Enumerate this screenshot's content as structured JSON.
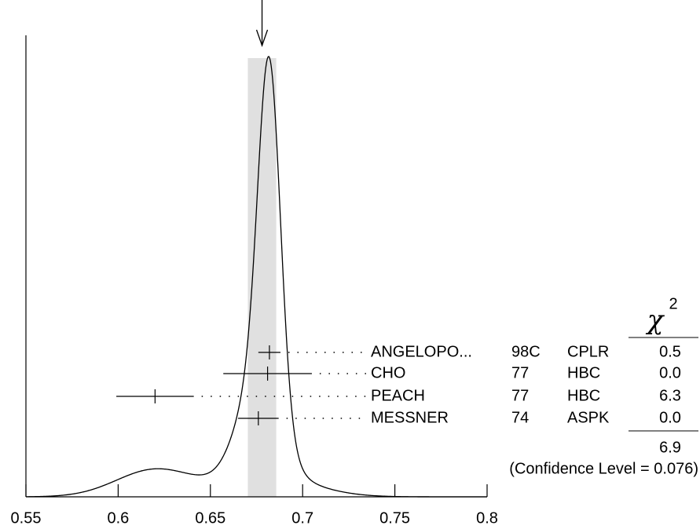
{
  "chart_data": {
    "type": "ideogram",
    "xlim": [
      0.55,
      0.8
    ],
    "xticks": [
      0.55,
      0.6,
      0.65,
      0.7,
      0.75,
      0.8
    ],
    "average": 0.678,
    "average_error": 0.0077,
    "band_color": "#e0e0e0",
    "measurements": {
      "names": [
        "ANGELOPO...",
        "CHO",
        "PEACH",
        "MESSNER"
      ],
      "years": [
        "98C",
        "77",
        "77",
        "74"
      ],
      "techniques": [
        "CPLR",
        "HBC",
        "HBC",
        "ASPK"
      ],
      "values": [
        0.682,
        0.681,
        0.62,
        0.676
      ],
      "errors": [
        0.006,
        0.024,
        0.021,
        0.011
      ]
    },
    "chi2": {
      "symbol": "χ",
      "superscript": "2",
      "values": [
        0.5,
        0,
        6.3,
        0
      ],
      "value_labels": [
        "0.5",
        "0.0",
        "6.3",
        "0.0"
      ],
      "total": 6.9,
      "confidence": "(Confidence Level = 0.076)"
    }
  }
}
